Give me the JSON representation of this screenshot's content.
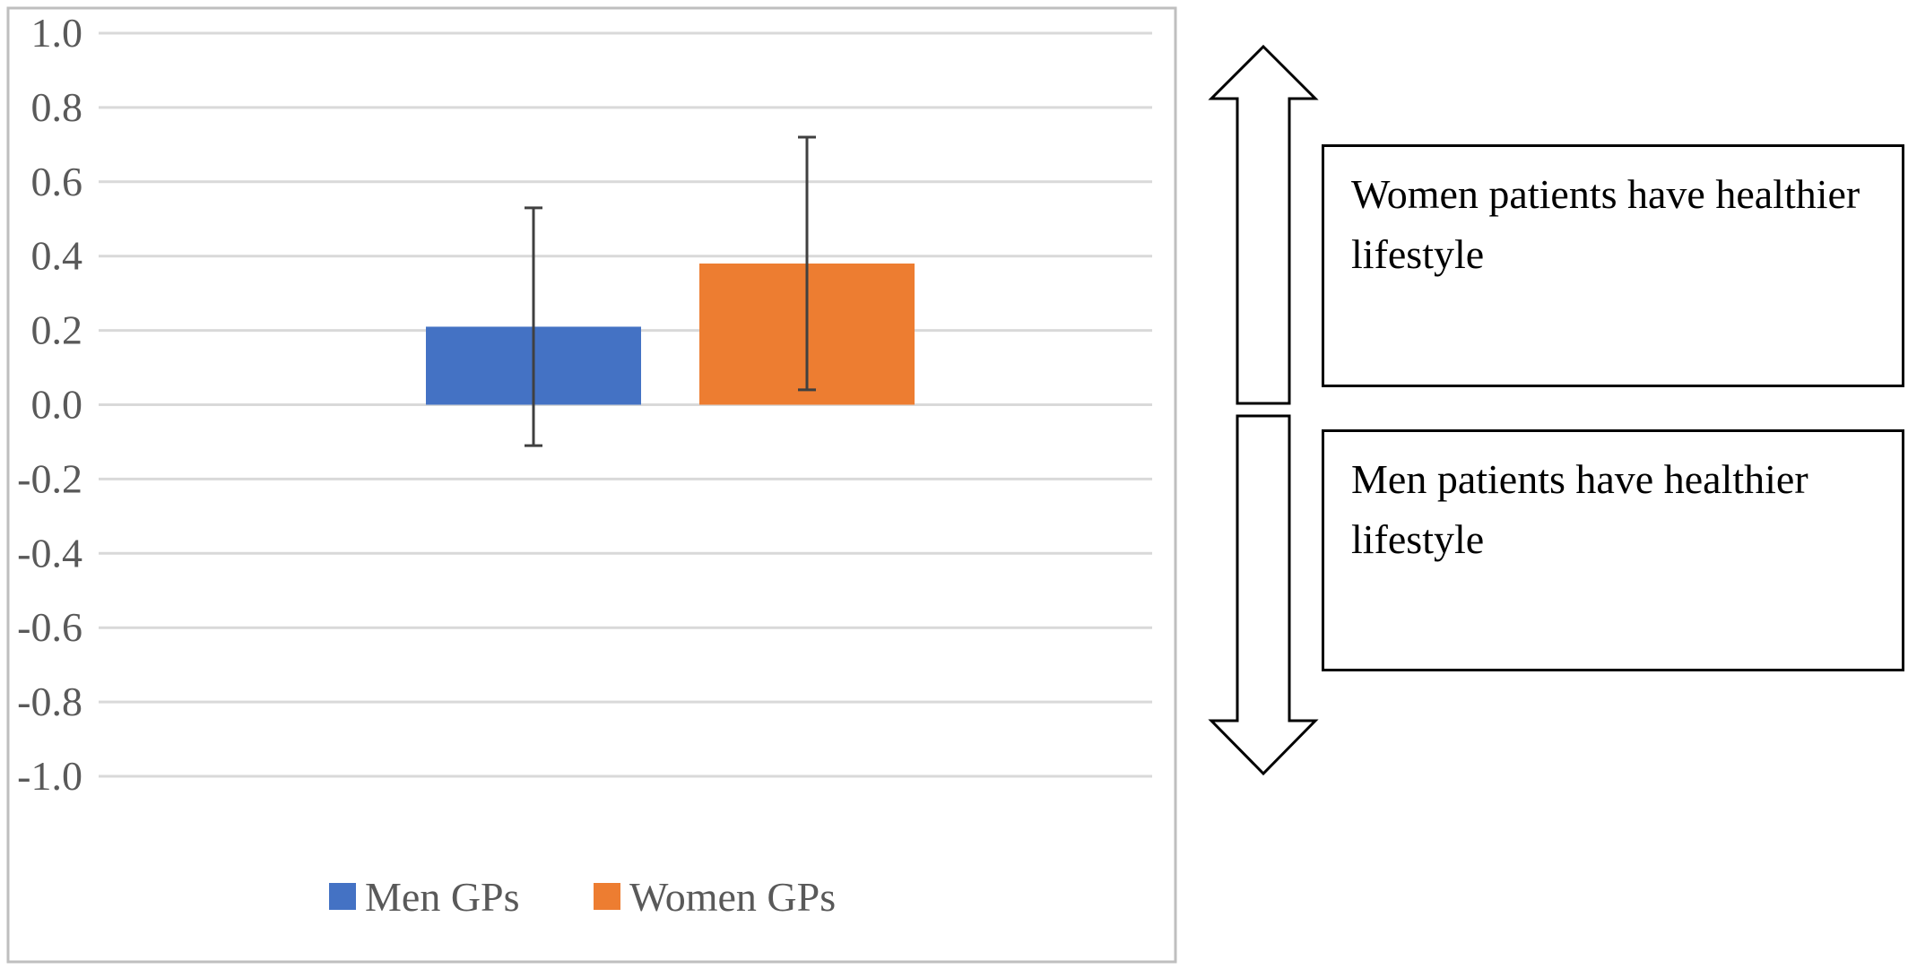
{
  "chart_data": {
    "type": "bar",
    "series": [
      {
        "name": "Men GPs",
        "value": 0.21,
        "error_low": -0.11,
        "error_high": 0.53,
        "color": "#4472C4"
      },
      {
        "name": "Women GPs",
        "value": 0.38,
        "error_low": 0.04,
        "error_high": 0.72,
        "color": "#ED7D31"
      }
    ],
    "ylim": [
      -1.0,
      1.0
    ],
    "yticks": [
      "1.0",
      "0.8",
      "0.6",
      "0.4",
      "0.2",
      "0.0",
      "-0.2",
      "-0.4",
      "-0.6",
      "-0.8",
      "-1.0"
    ],
    "grid": true,
    "legend_position": "bottom",
    "title": "",
    "xlabel": "",
    "ylabel": ""
  },
  "annotations": {
    "upper_text": "Women patients have healthier lifestyle",
    "lower_text": "Men patients have healthier lifestyle"
  },
  "colors": {
    "men_bar": "#4472C4",
    "women_bar": "#ED7D31",
    "grid": "#D9D9D9",
    "frame": "#BFBFBF",
    "error_bar": "#404040",
    "arrow": "#000000"
  }
}
